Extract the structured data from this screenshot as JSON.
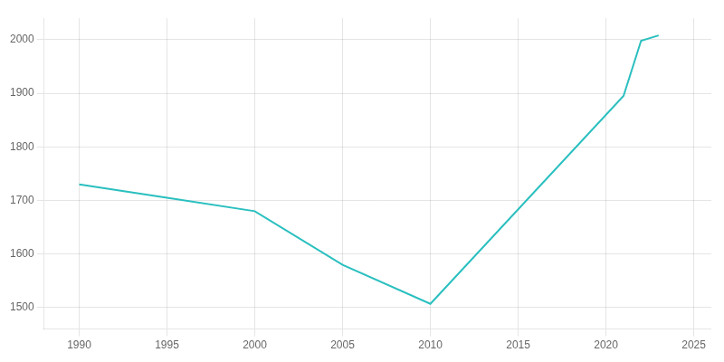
{
  "chart_data": {
    "type": "line",
    "x": [
      1990,
      1995,
      2000,
      2005,
      2010,
      2021,
      2022,
      2023
    ],
    "values": [
      1730,
      1705,
      1680,
      1580,
      1507,
      1895,
      1998,
      2008
    ],
    "color": "#2abfbf",
    "xlim": [
      1988,
      2026
    ],
    "ylim": [
      1460,
      2040
    ],
    "xticks": [
      1990,
      1995,
      2000,
      2005,
      2010,
      2015,
      2020,
      2025
    ],
    "yticks": [
      1500,
      1600,
      1700,
      1800,
      1900,
      2000
    ],
    "grid": true
  }
}
